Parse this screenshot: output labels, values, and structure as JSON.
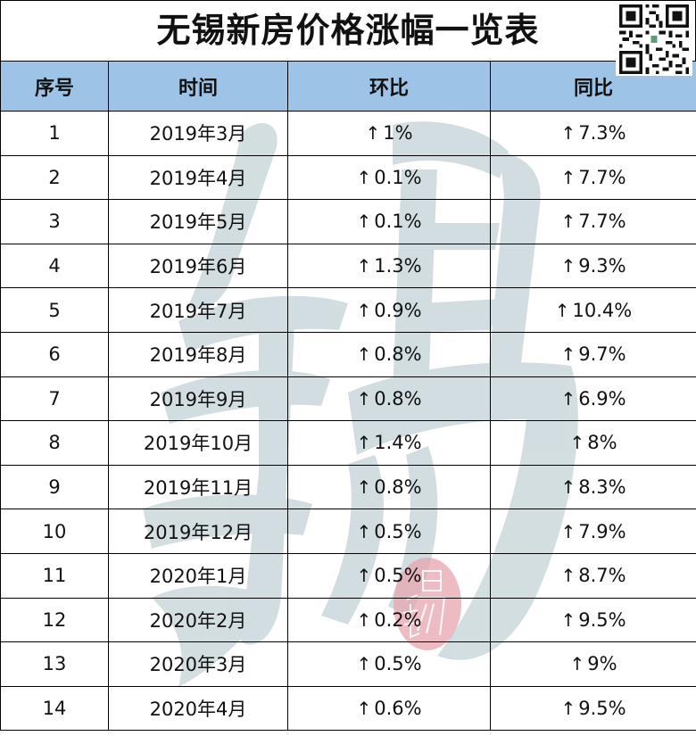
{
  "title": "无锡新房价格涨幅一览表",
  "qr_code": {
    "icon": "qr-code-icon"
  },
  "colors": {
    "header_bg": "#9DC3E6",
    "watermark": "#CBD8DC",
    "seal": "#E6A5AE",
    "border": "#000000"
  },
  "watermark": {
    "character": "锡",
    "seal_character": "锡"
  },
  "table": {
    "headers": [
      "序号",
      "时间",
      "环比",
      "同比"
    ],
    "arrow": "↑",
    "rows": [
      {
        "no": "1",
        "time": "2019年3月",
        "mom": "1%",
        "yoy": "7.3%"
      },
      {
        "no": "2",
        "time": "2019年4月",
        "mom": "0.1%",
        "yoy": "7.7%"
      },
      {
        "no": "3",
        "time": "2019年5月",
        "mom": "0.1%",
        "yoy": "7.7%"
      },
      {
        "no": "4",
        "time": "2019年6月",
        "mom": "1.3%",
        "yoy": "9.3%"
      },
      {
        "no": "5",
        "time": "2019年7月",
        "mom": "0.9%",
        "yoy": "10.4%"
      },
      {
        "no": "6",
        "time": "2019年8月",
        "mom": "0.8%",
        "yoy": "9.7%"
      },
      {
        "no": "7",
        "time": "2019年9月",
        "mom": "0.8%",
        "yoy": "6.9%"
      },
      {
        "no": "8",
        "time": "2019年10月",
        "mom": "1.4%",
        "yoy": "8%"
      },
      {
        "no": "9",
        "time": "2019年11月",
        "mom": "0.8%",
        "yoy": "8.3%"
      },
      {
        "no": "10",
        "time": "2019年12月",
        "mom": "0.5%",
        "yoy": "7.9%"
      },
      {
        "no": "11",
        "time": "2020年1月",
        "mom": "0.5%",
        "yoy": "8.7%"
      },
      {
        "no": "12",
        "time": "2020年2月",
        "mom": "0.2%",
        "yoy": "9.5%"
      },
      {
        "no": "13",
        "time": "2020年3月",
        "mom": "0.5%",
        "yoy": "9%"
      },
      {
        "no": "14",
        "time": "2020年4月",
        "mom": "0.6%",
        "yoy": "9.5%"
      }
    ]
  }
}
